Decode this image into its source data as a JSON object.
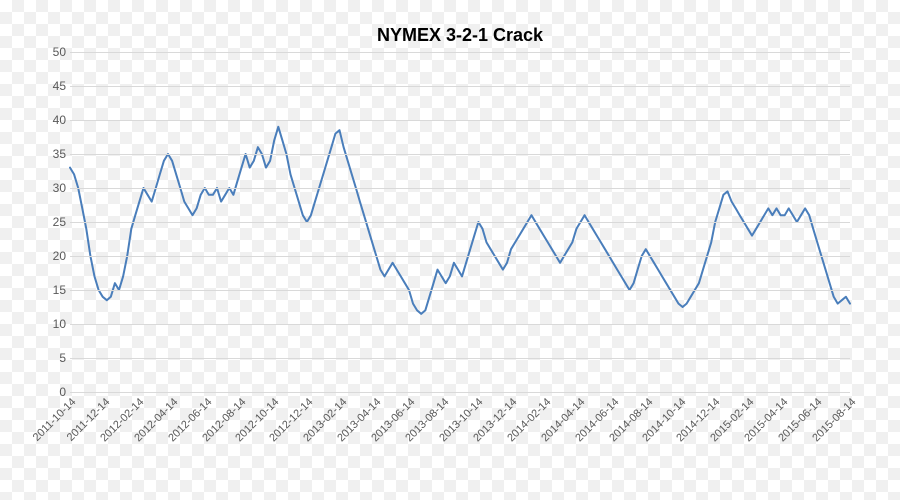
{
  "chart": {
    "type": "line",
    "title": "NYMEX 3-2-1 Crack",
    "title_fontsize": 18,
    "title_weight": "bold",
    "line_color": "#4a7ebb",
    "line_width": 2,
    "grid_color": "#d9d9d9",
    "background": "transparent",
    "label_color": "#595959",
    "label_fontsize": 12,
    "ylim": [
      0,
      50
    ],
    "ytick_step": 5,
    "yticks": [
      0,
      5,
      10,
      15,
      20,
      25,
      30,
      35,
      40,
      45,
      50
    ],
    "xticks": [
      "2011-10-14",
      "2011-12-14",
      "2012-02-14",
      "2012-04-14",
      "2012-06-14",
      "2012-08-14",
      "2012-10-14",
      "2012-12-14",
      "2013-02-14",
      "2013-04-14",
      "2013-06-14",
      "2013-08-14",
      "2013-10-14",
      "2013-12-14",
      "2014-02-14",
      "2014-04-14",
      "2014-06-14",
      "2014-08-14",
      "2014-10-14",
      "2014-12-14",
      "2015-02-14",
      "2015-04-14",
      "2015-06-14",
      "2015-08-14"
    ],
    "values": [
      33,
      32,
      30,
      27,
      24,
      20,
      17,
      15,
      14,
      13.5,
      14,
      16,
      15,
      17,
      20,
      24,
      26,
      28,
      30,
      29,
      28,
      30,
      32,
      34,
      35,
      34,
      32,
      30,
      28,
      27,
      26,
      27,
      29,
      30,
      29,
      29,
      30,
      28,
      29,
      30,
      29,
      31,
      33,
      35,
      33,
      34,
      36,
      35,
      33,
      34,
      37,
      39,
      37,
      35,
      32,
      30,
      28,
      26,
      25,
      26,
      28,
      30,
      32,
      34,
      36,
      38,
      38.5,
      36,
      34,
      32,
      30,
      28,
      26,
      24,
      22,
      20,
      18,
      17,
      18,
      19,
      18,
      17,
      16,
      15,
      13,
      12,
      11.5,
      12,
      14,
      16,
      18,
      17,
      16,
      17,
      19,
      18,
      17,
      19,
      21,
      23,
      25,
      24,
      22,
      21,
      20,
      19,
      18,
      19,
      21,
      22,
      23,
      24,
      25,
      26,
      25,
      24,
      23,
      22,
      21,
      20,
      19,
      20,
      21,
      22,
      24,
      25,
      26,
      25,
      24,
      23,
      22,
      21,
      20,
      19,
      18,
      17,
      16,
      15,
      16,
      18,
      20,
      21,
      20,
      19,
      18,
      17,
      16,
      15,
      14,
      13,
      12.5,
      13,
      14,
      15,
      16,
      18,
      20,
      22,
      25,
      27,
      29,
      29.5,
      28,
      27,
      26,
      25,
      24,
      23,
      24,
      25,
      26,
      27,
      26,
      27,
      26,
      26,
      27,
      26,
      25,
      26,
      27,
      26,
      24,
      22,
      20,
      18,
      16,
      14,
      13,
      13.5,
      14,
      13
    ]
  }
}
